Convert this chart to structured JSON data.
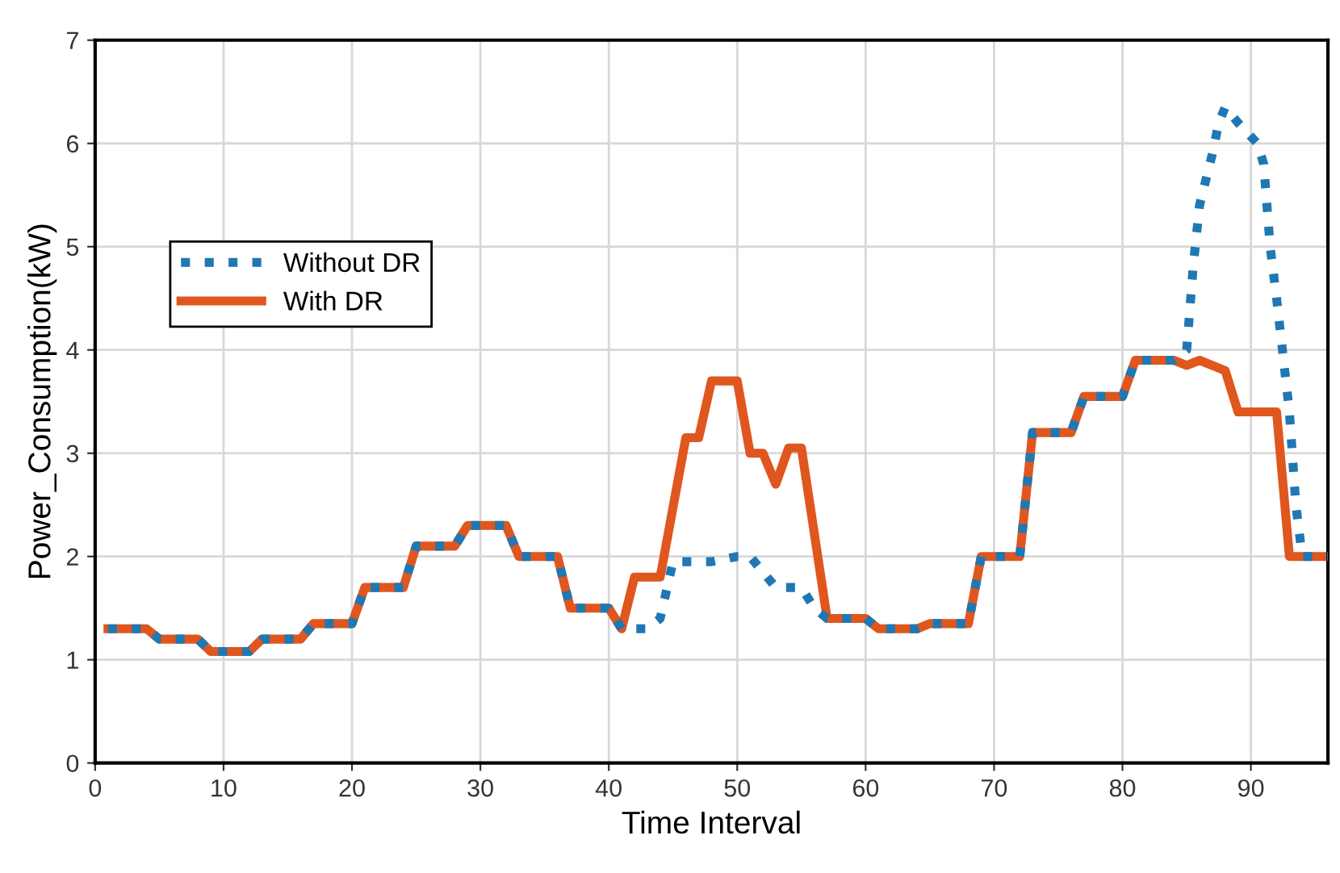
{
  "chart_data": {
    "type": "line",
    "xlabel": "Time Interval",
    "ylabel": "Power_Consumption(kW)",
    "xlim": [
      0,
      96
    ],
    "ylim": [
      0,
      7
    ],
    "xticks": [
      0,
      10,
      20,
      30,
      40,
      50,
      60,
      70,
      80,
      90
    ],
    "yticks": [
      0,
      1,
      2,
      3,
      4,
      5,
      6,
      7
    ],
    "grid": true,
    "legend": "upper left",
    "series": [
      {
        "name": "Without DR",
        "color": "#1f78b4",
        "line_style": "dotted",
        "x": [
          1,
          4,
          5,
          8,
          9,
          12,
          13,
          16,
          17,
          20,
          21,
          24,
          25,
          28,
          29,
          32,
          33,
          36,
          37,
          40,
          41,
          42,
          43,
          44,
          45,
          48,
          50,
          51,
          53,
          55,
          56,
          57,
          60,
          61,
          64,
          65,
          68,
          69,
          72,
          73,
          76,
          77,
          80,
          81,
          84,
          85,
          85.5,
          86,
          87,
          87.5,
          88,
          89,
          90.5,
          91,
          91.5,
          92,
          93,
          93.5,
          94,
          96
        ],
        "values": [
          1.3,
          1.3,
          1.2,
          1.2,
          1.08,
          1.08,
          1.2,
          1.2,
          1.35,
          1.35,
          1.7,
          1.7,
          2.1,
          2.1,
          2.3,
          2.3,
          2.0,
          2.0,
          1.5,
          1.5,
          1.3,
          1.3,
          1.3,
          1.4,
          1.95,
          1.95,
          2.0,
          2.0,
          1.7,
          1.7,
          1.5,
          1.4,
          1.4,
          1.3,
          1.3,
          1.35,
          1.35,
          2.0,
          2.0,
          3.2,
          3.2,
          3.55,
          3.55,
          3.9,
          3.9,
          4.0,
          4.8,
          5.4,
          5.9,
          6.2,
          6.35,
          6.2,
          6.0,
          5.8,
          5.0,
          4.5,
          3.4,
          2.5,
          2.0,
          2.0
        ]
      },
      {
        "name": "With DR",
        "color": "#e0561f",
        "line_style": "solid",
        "x": [
          1,
          4,
          5,
          8,
          9,
          12,
          13,
          16,
          17,
          20,
          21,
          24,
          25,
          28,
          29,
          32,
          33,
          36,
          37,
          40,
          41,
          42,
          44,
          46,
          47,
          48,
          50,
          51,
          52,
          53,
          54,
          55,
          57,
          60,
          61,
          64,
          65,
          68,
          69,
          72,
          73,
          76,
          77,
          80,
          81,
          84,
          85,
          86,
          88,
          89,
          92,
          93,
          96
        ],
        "values": [
          1.3,
          1.3,
          1.2,
          1.2,
          1.08,
          1.08,
          1.2,
          1.2,
          1.35,
          1.35,
          1.7,
          1.7,
          2.1,
          2.1,
          2.3,
          2.3,
          2.0,
          2.0,
          1.5,
          1.5,
          1.3,
          1.8,
          1.8,
          3.15,
          3.15,
          3.7,
          3.7,
          3.0,
          3.0,
          2.7,
          3.05,
          3.05,
          1.4,
          1.4,
          1.3,
          1.3,
          1.35,
          1.35,
          2.0,
          2.0,
          3.2,
          3.2,
          3.55,
          3.55,
          3.9,
          3.9,
          3.85,
          3.9,
          3.8,
          3.4,
          3.4,
          2.0,
          2.0
        ]
      }
    ]
  }
}
